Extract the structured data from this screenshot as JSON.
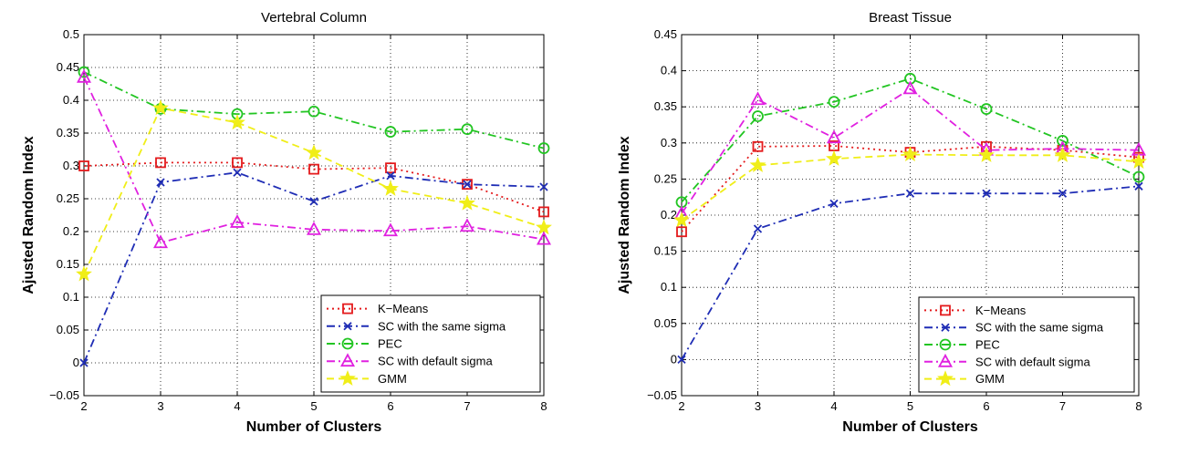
{
  "chart_data": [
    {
      "type": "line",
      "title": "Vertebral Column",
      "xlabel": "Number of Clusters",
      "ylabel": "Ajusted Random Index",
      "x": [
        2,
        3,
        4,
        5,
        6,
        7,
        8
      ],
      "xlim": [
        2,
        8
      ],
      "ylim": [
        -0.05,
        0.5
      ],
      "yticks": [
        -0.05,
        0,
        0.05,
        0.1,
        0.15,
        0.2,
        0.25,
        0.3,
        0.35,
        0.4,
        0.45,
        0.5
      ],
      "ytick_labels": [
        "−0.05",
        "0",
        "0.05",
        "0.1",
        "0.15",
        "0.2",
        "0.25",
        "0.3",
        "0.35",
        "0.4",
        "0.45",
        "0.5"
      ],
      "xtick_labels": [
        "2",
        "3",
        "4",
        "5",
        "6",
        "7",
        "8"
      ],
      "grid": true,
      "legend_position": "bottom-right",
      "series": [
        {
          "name": "K−Means",
          "color": "#e41a1c",
          "marker": "square",
          "dash": "dotted",
          "values": [
            0.3,
            0.305,
            0.305,
            0.295,
            0.297,
            0.272,
            0.23
          ]
        },
        {
          "name": "SC with the same sigma",
          "color": "#1f2db5",
          "marker": "x",
          "dash": "dashdot",
          "values": [
            0.0,
            0.275,
            0.29,
            0.246,
            0.285,
            0.272,
            0.268
          ]
        },
        {
          "name": "PEC",
          "color": "#22c522",
          "marker": "circle",
          "dash": "dashdot",
          "values": [
            0.443,
            0.387,
            0.379,
            0.383,
            0.352,
            0.356,
            0.327
          ]
        },
        {
          "name": "SC with default sigma",
          "color": "#e021e0",
          "marker": "triangle",
          "dash": "dashdot",
          "values": [
            0.435,
            0.183,
            0.214,
            0.203,
            0.201,
            0.208,
            0.188
          ]
        },
        {
          "name": "GMM",
          "color": "#f0ee18",
          "marker": "star",
          "dash": "dashed",
          "values": [
            0.135,
            0.388,
            0.366,
            0.32,
            0.265,
            0.243,
            0.206
          ]
        }
      ]
    },
    {
      "type": "line",
      "title": "Breast Tissue",
      "xlabel": "Number of Clusters",
      "ylabel": "Ajusted Random Index",
      "x": [
        2,
        3,
        4,
        5,
        6,
        7,
        8
      ],
      "xlim": [
        2,
        8
      ],
      "ylim": [
        -0.05,
        0.45
      ],
      "yticks": [
        -0.05,
        0,
        0.05,
        0.1,
        0.15,
        0.2,
        0.25,
        0.3,
        0.35,
        0.4,
        0.45
      ],
      "ytick_labels": [
        "−0.05",
        "0",
        "0.05",
        "0.1",
        "0.15",
        "0.2",
        "0.25",
        "0.3",
        "0.35",
        "0.4",
        "0.45"
      ],
      "xtick_labels": [
        "2",
        "3",
        "4",
        "5",
        "6",
        "7",
        "8"
      ],
      "grid": true,
      "legend_position": "bottom-right",
      "series": [
        {
          "name": "K−Means",
          "color": "#e41a1c",
          "marker": "square",
          "dash": "dotted",
          "values": [
            0.177,
            0.295,
            0.296,
            0.287,
            0.295,
            0.29,
            0.28
          ]
        },
        {
          "name": "SC with the same sigma",
          "color": "#1f2db5",
          "marker": "x",
          "dash": "dashdot",
          "values": [
            0.0,
            0.181,
            0.216,
            0.23,
            0.23,
            0.23,
            0.24
          ]
        },
        {
          "name": "PEC",
          "color": "#22c522",
          "marker": "circle",
          "dash": "dashdot",
          "values": [
            0.218,
            0.337,
            0.357,
            0.389,
            0.347,
            0.303,
            0.253
          ]
        },
        {
          "name": "SC with default sigma",
          "color": "#e021e0",
          "marker": "triangle",
          "dash": "dashdot",
          "values": [
            0.202,
            0.36,
            0.307,
            0.375,
            0.29,
            0.292,
            0.29
          ]
        },
        {
          "name": "GMM",
          "color": "#f0ee18",
          "marker": "star",
          "dash": "dashed",
          "values": [
            0.193,
            0.269,
            0.278,
            0.284,
            0.283,
            0.283,
            0.274
          ]
        }
      ]
    }
  ]
}
